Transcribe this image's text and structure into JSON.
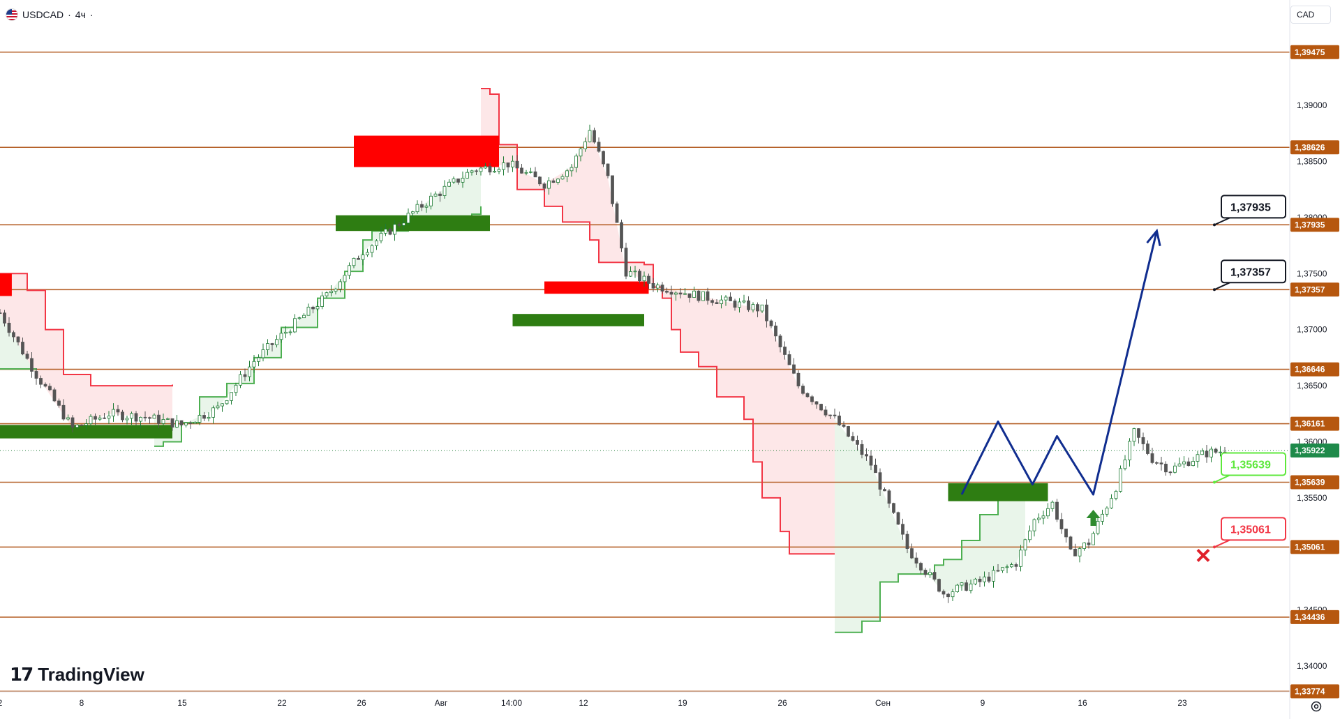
{
  "header": {
    "symbol": "USDCAD",
    "separator": "·",
    "timeframe": "4ч",
    "dot": "·"
  },
  "currency_button": {
    "label": "CAD"
  },
  "logo": {
    "mark": "17",
    "text": "TradingView"
  },
  "icons": {
    "flag": "us-flag-icon",
    "settings": "settings-icon",
    "entry_arrow": "up-arrow-icon",
    "stop_mark": "cross-icon"
  },
  "colors": {
    "level_line": "#b6622a",
    "level_label_bg": "#b6570f",
    "bull_candle": "#1e7b34",
    "bear_candle": "#555555",
    "supertrend_up": "#4caf50",
    "supertrend_down": "#f23645",
    "zone_red": "#ff0000",
    "zone_green": "#2e7d12",
    "projection": "#102d8f",
    "target_label": "#131722",
    "entry_label": "#5de83b",
    "stop_label": "#f23645"
  },
  "chart_data": {
    "type": "candlestick",
    "symbol": "USDCAD",
    "interval": "4ч",
    "y_range": [
      1.3377,
      1.3994
    ],
    "y_ticks": [
      "1,34000",
      "1,34500",
      "1,35500",
      "1,36000",
      "1,36500",
      "1,37000",
      "1,37500",
      "1,38000",
      "1,38500",
      "1,39000"
    ],
    "x_ticks": [
      "2",
      "8",
      "15",
      "22",
      "26",
      "Авг",
      "14:00",
      "12",
      "19",
      "26",
      "Сен",
      "9",
      "16",
      "23"
    ],
    "last_price": "1,35922",
    "horizontal_levels": [
      "1,39475",
      "1,38626",
      "1,37935",
      "1,37357",
      "1,36646",
      "1,36161",
      "1,35639",
      "1,35061",
      "1,34436",
      "1,33774"
    ],
    "annotations": {
      "targets": [
        "1,37935",
        "1,37357"
      ],
      "entry": "1,35639",
      "stop": "1,35061"
    },
    "price_path": [
      [
        0,
        1.3715
      ],
      [
        4,
        1.366
      ],
      [
        8,
        1.3612
      ],
      [
        12,
        1.3625
      ],
      [
        16,
        1.3622
      ],
      [
        20,
        1.3615
      ],
      [
        24,
        1.363
      ],
      [
        28,
        1.3672
      ],
      [
        32,
        1.3702
      ],
      [
        36,
        1.373
      ],
      [
        40,
        1.377
      ],
      [
        44,
        1.3795
      ],
      [
        48,
        1.382
      ],
      [
        52,
        1.3842
      ],
      [
        56,
        1.3848
      ],
      [
        60,
        1.383
      ],
      [
        63,
        1.3845
      ],
      [
        65,
        1.3878
      ],
      [
        67,
        1.3835
      ],
      [
        69,
        1.3752
      ],
      [
        72,
        1.374
      ],
      [
        76,
        1.3732
      ],
      [
        80,
        1.3725
      ],
      [
        84,
        1.3718
      ],
      [
        88,
        1.365
      ],
      [
        92,
        1.362
      ],
      [
        96,
        1.358
      ],
      [
        100,
        1.3505
      ],
      [
        104,
        1.3465
      ],
      [
        108,
        1.3475
      ],
      [
        112,
        1.3492
      ],
      [
        114,
        1.353
      ],
      [
        116,
        1.3545
      ],
      [
        118,
        1.35
      ],
      [
        120,
        1.351
      ],
      [
        123,
        1.356
      ],
      [
        125,
        1.3608
      ],
      [
        127,
        1.3585
      ],
      [
        129,
        1.3575
      ],
      [
        131,
        1.3583
      ],
      [
        133,
        1.359
      ],
      [
        135,
        1.3592
      ]
    ],
    "supertrend_up_segments": [
      [
        [
          0,
          1.3665
        ],
        [
          4,
          1.3664
        ]
      ],
      [
        [
          17,
          1.3596
        ],
        [
          18,
          1.36
        ],
        [
          20,
          1.3617
        ],
        [
          22,
          1.364
        ],
        [
          25,
          1.3652
        ],
        [
          28,
          1.3675
        ],
        [
          31,
          1.3702
        ],
        [
          35,
          1.3728
        ],
        [
          38,
          1.3752
        ],
        [
          40,
          1.378
        ],
        [
          41,
          1.3788
        ],
        [
          45,
          1.379
        ],
        [
          48,
          1.3798
        ],
        [
          50,
          1.38
        ],
        [
          52,
          1.3803
        ],
        [
          53,
          1.381
        ]
      ],
      [
        [
          92,
          1.343
        ],
        [
          95,
          1.344
        ],
        [
          97,
          1.3475
        ],
        [
          99,
          1.3482
        ],
        [
          103,
          1.349
        ],
        [
          104,
          1.3495
        ],
        [
          106,
          1.3512
        ],
        [
          108,
          1.3535
        ],
        [
          110,
          1.3562
        ],
        [
          113,
          1.355
        ]
      ]
    ],
    "supertrend_down_segments": [
      [
        [
          0,
          1.375
        ],
        [
          3,
          1.3735
        ],
        [
          5,
          1.37
        ],
        [
          7,
          1.366
        ],
        [
          10,
          1.365
        ],
        [
          19,
          1.3651
        ]
      ],
      [
        [
          53,
          1.3915
        ],
        [
          54,
          1.391
        ],
        [
          55,
          1.3865
        ],
        [
          57,
          1.3825
        ],
        [
          60,
          1.381
        ],
        [
          62,
          1.3796
        ],
        [
          65,
          1.378
        ],
        [
          66,
          1.376
        ],
        [
          71,
          1.3758
        ],
        [
          72,
          1.3738
        ],
        [
          73,
          1.3728
        ],
        [
          74,
          1.37
        ],
        [
          75,
          1.368
        ],
        [
          77,
          1.3667
        ],
        [
          79,
          1.364
        ],
        [
          82,
          1.362
        ],
        [
          83,
          1.3582
        ],
        [
          84,
          1.355
        ],
        [
          86,
          1.352
        ],
        [
          87,
          1.35
        ],
        [
          92,
          1.35
        ]
      ]
    ],
    "zones": [
      {
        "color": "red",
        "x": [
          39,
          55
        ],
        "y": [
          1.3845,
          1.3873
        ]
      },
      {
        "color": "green",
        "x": [
          37,
          54
        ],
        "y": [
          1.3788,
          1.3802
        ]
      },
      {
        "color": "red",
        "x": [
          0,
          1.3
        ],
        "y": [
          1.373,
          1.375
        ]
      },
      {
        "color": "green",
        "x": [
          0,
          19
        ],
        "y": [
          1.3603,
          1.3615
        ]
      },
      {
        "color": "red",
        "x": [
          60,
          71.5
        ],
        "y": [
          1.3732,
          1.3743
        ]
      },
      {
        "color": "green",
        "x": [
          56.5,
          71
        ],
        "y": [
          1.3703,
          1.3714
        ]
      },
      {
        "color": "green",
        "x": [
          104.5,
          115.5
        ],
        "y": [
          1.3547,
          1.3563
        ]
      }
    ],
    "projection_path": [
      [
        106,
        1.3553
      ],
      [
        110,
        1.3618
      ],
      [
        113.8,
        1.3562
      ],
      [
        116.5,
        1.3605
      ],
      [
        120.5,
        1.3553
      ],
      [
        127.5,
        1.3788
      ]
    ]
  }
}
